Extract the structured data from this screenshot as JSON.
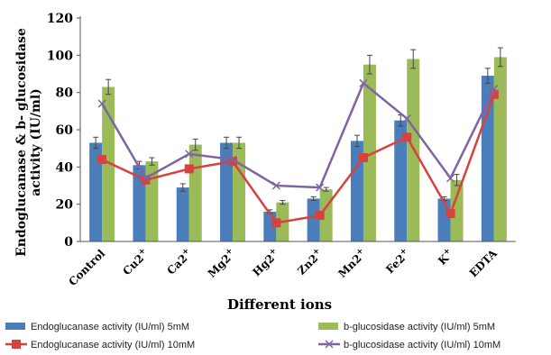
{
  "chart_data": {
    "type": "bar",
    "xlabel": "Different ions",
    "ylabel_line1": "Endoglucanase & b- glucosidase",
    "ylabel_line2": "activity (IU/ml)",
    "ylim": [
      0,
      120
    ],
    "yticks": [
      0,
      20,
      40,
      60,
      80,
      100,
      120
    ],
    "categories": [
      "Control",
      "Cu2+",
      "Ca2+",
      "Mg2+",
      "Hg2+",
      "Zn2+",
      "Mn2+",
      "Fe2+",
      "K+",
      "EDTA"
    ],
    "category_labels": [
      {
        "base": "Control",
        "sup": ""
      },
      {
        "base": "Cu2",
        "sup": "+"
      },
      {
        "base": "Ca2",
        "sup": "+"
      },
      {
        "base": "Mg2",
        "sup": "+"
      },
      {
        "base": "Hg2",
        "sup": "+"
      },
      {
        "base": "Zn2",
        "sup": "+"
      },
      {
        "base": "Mn2",
        "sup": "+"
      },
      {
        "base": "Fe2",
        "sup": "+"
      },
      {
        "base": "K",
        "sup": "+"
      },
      {
        "base": "EDTA",
        "sup": ""
      }
    ],
    "series": [
      {
        "name": "Endoglucanase activity (IU/ml) 5mM",
        "kind": "bar",
        "color": "#4a7ebb",
        "values": [
          53,
          41,
          29,
          53,
          16,
          23,
          54,
          65,
          23,
          89
        ],
        "errors": [
          3,
          2,
          2,
          3,
          1,
          1,
          3,
          3,
          1,
          4
        ]
      },
      {
        "name": "b-glucosidase activity (IU/ml) 5mM",
        "kind": "bar",
        "color": "#9bbb59",
        "values": [
          83,
          43,
          52,
          53,
          21,
          28,
          95,
          98,
          33,
          99
        ],
        "errors": [
          4,
          2,
          3,
          3,
          1,
          1,
          5,
          5,
          3,
          5
        ]
      },
      {
        "name": "Endoglucanase activity (IU/ml) 10mM",
        "kind": "line",
        "marker": "square",
        "color": "#d9413e",
        "values": [
          44,
          33,
          39,
          43,
          10,
          14,
          45,
          56,
          15,
          79
        ]
      },
      {
        "name": "b-glucosidase activity (IU/ml) 10mM",
        "kind": "line",
        "marker": "x",
        "color": "#8064a2",
        "values": [
          74,
          34,
          47,
          44,
          30,
          29,
          85,
          66,
          34,
          82
        ]
      }
    ],
    "grid": false,
    "legend_position": "bottom"
  }
}
